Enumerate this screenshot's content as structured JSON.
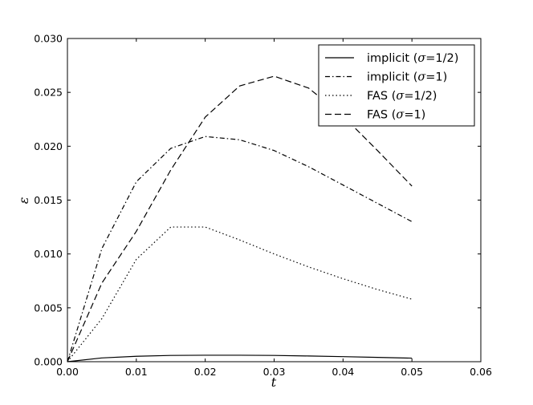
{
  "chart_data": {
    "type": "line",
    "title": "",
    "xlabel": "t",
    "ylabel": "ε",
    "xlim": [
      0,
      0.06
    ],
    "ylim": [
      0,
      0.03
    ],
    "xticks": [
      0.0,
      0.01,
      0.02,
      0.03,
      0.04,
      0.05,
      0.06
    ],
    "yticks": [
      0.0,
      0.005,
      0.01,
      0.015,
      0.02,
      0.025,
      0.03
    ],
    "xtick_labels": [
      "0.00",
      "0.01",
      "0.02",
      "0.03",
      "0.04",
      "0.05",
      "0.06"
    ],
    "ytick_labels": [
      "0.000",
      "0.005",
      "0.010",
      "0.015",
      "0.020",
      "0.025",
      "0.030"
    ],
    "grid": false,
    "legend_position": "top-right",
    "series": [
      {
        "name_prefix": "implicit (",
        "name_symbol": "σ",
        "name_suffix": "=1/2)",
        "style": "solid",
        "x": [
          0,
          0.005,
          0.01,
          0.015,
          0.02,
          0.025,
          0.03,
          0.035,
          0.04,
          0.045,
          0.05
        ],
        "y": [
          0.0,
          0.00035,
          0.0005,
          0.00058,
          0.0006,
          0.0006,
          0.00058,
          0.00053,
          0.00047,
          0.0004,
          0.00033
        ]
      },
      {
        "name_prefix": "implicit (",
        "name_symbol": "σ",
        "name_suffix": "=1)",
        "style": "dashdot",
        "x": [
          0,
          0.005,
          0.01,
          0.015,
          0.02,
          0.025,
          0.03,
          0.035,
          0.04,
          0.045,
          0.05
        ],
        "y": [
          0.0,
          0.0105,
          0.0167,
          0.0198,
          0.0209,
          0.0206,
          0.0196,
          0.0181,
          0.0164,
          0.0147,
          0.013
        ]
      },
      {
        "name_prefix": "FAS (",
        "name_symbol": "σ",
        "name_suffix": "=1/2)",
        "style": "dotted",
        "x": [
          0,
          0.005,
          0.01,
          0.015,
          0.02,
          0.025,
          0.03,
          0.035,
          0.04,
          0.045,
          0.05
        ],
        "y": [
          0.0,
          0.004,
          0.0095,
          0.0125,
          0.0125,
          0.0113,
          0.01,
          0.0088,
          0.0077,
          0.0067,
          0.0058
        ]
      },
      {
        "name_prefix": "FAS (",
        "name_symbol": "σ",
        "name_suffix": "=1)",
        "style": "dashed",
        "x": [
          0,
          0.005,
          0.01,
          0.015,
          0.02,
          0.025,
          0.03,
          0.035,
          0.04,
          0.045,
          0.05
        ],
        "y": [
          0.0,
          0.0073,
          0.0121,
          0.0178,
          0.0227,
          0.0256,
          0.0265,
          0.0254,
          0.0228,
          0.0196,
          0.0163
        ]
      }
    ]
  },
  "colors": {
    "line": "#000000",
    "background": "#ffffff"
  }
}
